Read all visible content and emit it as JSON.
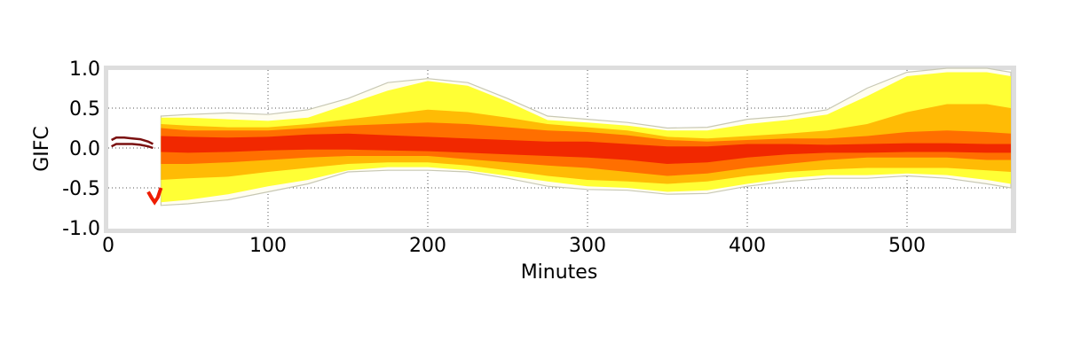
{
  "chart_data": {
    "type": "area",
    "title": "",
    "xlabel": "Minutes",
    "ylabel": "GIFC",
    "xlim": [
      0,
      567
    ],
    "ylim": [
      -1.0,
      1.0
    ],
    "x_ticks": [
      0,
      100,
      200,
      300,
      400,
      500
    ],
    "y_ticks": [
      1.0,
      0.5,
      0.0,
      -0.5,
      -1.0
    ],
    "x_tick_labels": [
      "0",
      "100",
      "200",
      "300",
      "400",
      "500"
    ],
    "y_tick_labels": [
      "1.0",
      "0.5",
      "0.0",
      "-0.5",
      "-1.0"
    ],
    "grid": true,
    "grid_style": "dotted",
    "legend": "none",
    "colors": {
      "outer_envelope": "#c8c8b4",
      "outer_band": "#ffff2a",
      "middle_band": "#ffb400",
      "inner_band": "#ff6a00",
      "core": "#ee1c00",
      "early_line": "#7a1010",
      "frame": "#dddddd"
    },
    "early_segment": {
      "x": [
        2,
        5,
        10,
        15,
        20,
        25,
        28
      ],
      "upper": [
        0.1,
        0.13,
        0.13,
        0.12,
        0.11,
        0.08,
        0.05
      ],
      "lower": [
        0.02,
        0.05,
        0.05,
        0.05,
        0.04,
        0.02,
        0.0
      ]
    },
    "early_dip": {
      "x": [
        25,
        27,
        29,
        31,
        33
      ],
      "y": [
        -0.55,
        -0.62,
        -0.68,
        -0.62,
        -0.5
      ]
    },
    "bands": {
      "x": [
        33,
        50,
        75,
        100,
        125,
        150,
        175,
        200,
        225,
        250,
        275,
        300,
        325,
        350,
        375,
        400,
        425,
        450,
        475,
        500,
        525,
        550,
        565
      ],
      "envelope_upper": [
        0.4,
        0.42,
        0.44,
        0.42,
        0.48,
        0.62,
        0.82,
        0.87,
        0.82,
        0.62,
        0.4,
        0.36,
        0.32,
        0.25,
        0.26,
        0.36,
        0.4,
        0.48,
        0.75,
        0.95,
        1.0,
        1.0,
        0.95
      ],
      "envelope_lower": [
        -0.72,
        -0.7,
        -0.65,
        -0.55,
        -0.45,
        -0.3,
        -0.28,
        -0.28,
        -0.3,
        -0.38,
        -0.48,
        -0.52,
        -0.53,
        -0.58,
        -0.57,
        -0.48,
        -0.42,
        -0.38,
        -0.38,
        -0.35,
        -0.38,
        -0.45,
        -0.5
      ],
      "outer_upper": [
        0.38,
        0.38,
        0.36,
        0.34,
        0.38,
        0.55,
        0.72,
        0.84,
        0.78,
        0.58,
        0.35,
        0.32,
        0.28,
        0.22,
        0.22,
        0.3,
        0.35,
        0.42,
        0.65,
        0.9,
        0.95,
        0.95,
        0.9
      ],
      "outer_lower": [
        -0.68,
        -0.65,
        -0.58,
        -0.48,
        -0.4,
        -0.28,
        -0.24,
        -0.24,
        -0.28,
        -0.35,
        -0.42,
        -0.48,
        -0.5,
        -0.55,
        -0.53,
        -0.45,
        -0.38,
        -0.34,
        -0.34,
        -0.32,
        -0.34,
        -0.4,
        -0.45
      ],
      "mid_upper": [
        0.3,
        0.28,
        0.26,
        0.26,
        0.3,
        0.36,
        0.42,
        0.48,
        0.45,
        0.38,
        0.3,
        0.26,
        0.22,
        0.14,
        0.12,
        0.15,
        0.18,
        0.22,
        0.3,
        0.45,
        0.55,
        0.55,
        0.5
      ],
      "mid_lower": [
        -0.4,
        -0.38,
        -0.36,
        -0.3,
        -0.25,
        -0.2,
        -0.18,
        -0.18,
        -0.22,
        -0.28,
        -0.35,
        -0.4,
        -0.42,
        -0.45,
        -0.42,
        -0.35,
        -0.3,
        -0.27,
        -0.25,
        -0.25,
        -0.25,
        -0.28,
        -0.3
      ],
      "inner_upper": [
        0.25,
        0.22,
        0.22,
        0.22,
        0.25,
        0.28,
        0.3,
        0.32,
        0.3,
        0.26,
        0.22,
        0.2,
        0.16,
        0.1,
        0.08,
        0.1,
        0.12,
        0.12,
        0.15,
        0.2,
        0.22,
        0.2,
        0.18
      ],
      "inner_lower": [
        -0.2,
        -0.2,
        -0.18,
        -0.15,
        -0.12,
        -0.1,
        -0.1,
        -0.1,
        -0.14,
        -0.18,
        -0.22,
        -0.25,
        -0.3,
        -0.35,
        -0.32,
        -0.25,
        -0.2,
        -0.15,
        -0.12,
        -0.12,
        -0.12,
        -0.15,
        -0.15
      ],
      "core_upper": [
        0.15,
        0.14,
        0.13,
        0.14,
        0.17,
        0.18,
        0.16,
        0.14,
        0.12,
        0.1,
        0.08,
        0.08,
        0.05,
        0.02,
        0.02,
        0.05,
        0.05,
        0.04,
        0.05,
        0.06,
        0.06,
        0.05,
        0.05
      ],
      "core_lower": [
        -0.05,
        -0.06,
        -0.05,
        -0.03,
        -0.02,
        -0.02,
        -0.03,
        -0.04,
        -0.06,
        -0.08,
        -0.1,
        -0.12,
        -0.15,
        -0.2,
        -0.18,
        -0.12,
        -0.08,
        -0.06,
        -0.06,
        -0.05,
        -0.05,
        -0.06,
        -0.06
      ]
    }
  }
}
